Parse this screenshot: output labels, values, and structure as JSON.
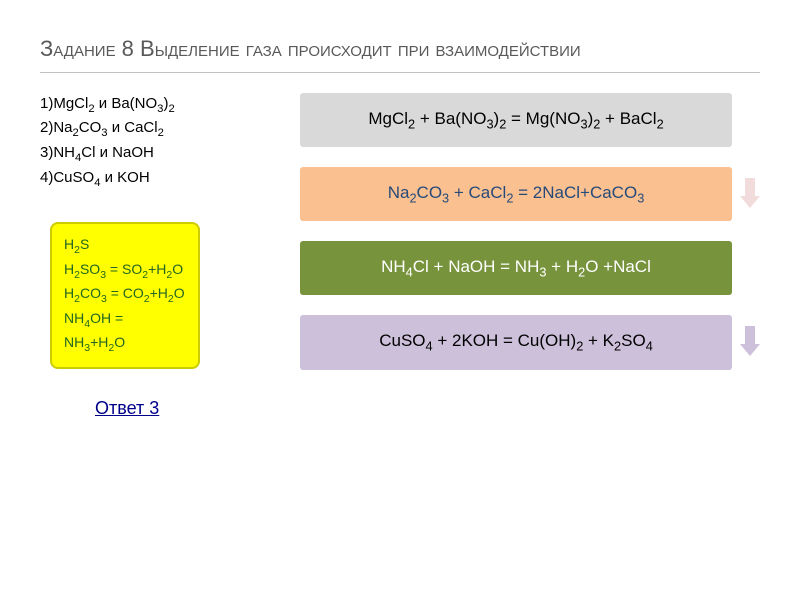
{
  "title": "Задание 8 Выделение газа происходит при взаимодействии",
  "options": [
    "1)MgCl2 и Ba(NO3)2",
    "2)Na2CO3 и CaCl2",
    "3)NH4Cl и NaOH",
    "4)CuSO4 и KOH"
  ],
  "yellow_box": [
    "H2S",
    "H2SO3 = SO2+H2O",
    "H2CO3 = CO2+H2O",
    "NH4OH = NH3+H2O"
  ],
  "equations": [
    {
      "text": "MgCl2 + Ba(NO3)2 = Mg(NO3)2 + BaCl2",
      "bg": "#d9d9d9",
      "fg": "#000000",
      "arrow": false
    },
    {
      "text": "Na2CO3 + CaCl2 = 2NaCl+CaCO3",
      "bg": "#fac090",
      "fg": "#264a7a",
      "arrow": true,
      "arrow_color": "#f2dcdb"
    },
    {
      "text": "NH4Cl + NaOH = NH3  + H2O +NaCl",
      "bg": "#77933c",
      "fg": "#ffffff",
      "arrow": false
    },
    {
      "text": "CuSO4 + 2KOH = Cu(OH)2 + K2SO4",
      "bg": "#ccc0da",
      "fg": "#000000",
      "arrow": true,
      "arrow_color": "#ccc0da"
    }
  ],
  "answer": "Ответ 3",
  "colors": {
    "title": "#595959",
    "yellow_bg": "#ffff00",
    "yellow_border": "#cccc00",
    "yellow_text": "#226622",
    "answer": "#00008b"
  },
  "fonts": {
    "title_size": 22,
    "option_size": 15,
    "yellow_size": 14,
    "eq_size": 17,
    "answer_size": 18
  }
}
